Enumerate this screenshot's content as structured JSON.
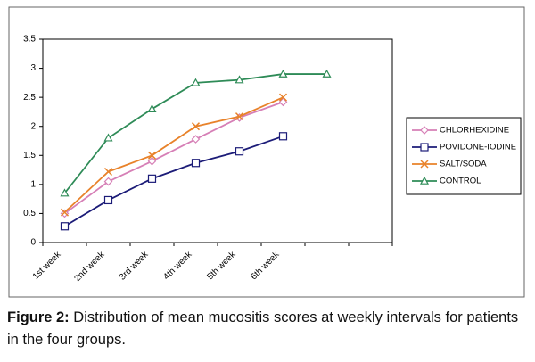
{
  "chart_data": {
    "type": "line",
    "categories": [
      "1st week",
      "2nd week",
      "3rd week",
      "4th week",
      "5th week",
      "6th week",
      null,
      null
    ],
    "series": [
      {
        "name": "CHLORHEXIDINE",
        "color": "#d67fb6",
        "marker": "diamond",
        "values": [
          0.5,
          1.05,
          1.4,
          1.78,
          2.15,
          2.42,
          null,
          null
        ]
      },
      {
        "name": "POVIDONE-IODINE",
        "color": "#1c1c78",
        "marker": "square",
        "values": [
          0.28,
          0.73,
          1.1,
          1.37,
          1.57,
          1.83,
          null,
          null
        ]
      },
      {
        "name": "SALT/SODA",
        "color": "#e8822a",
        "marker": "cross",
        "values": [
          0.52,
          1.22,
          1.5,
          2.0,
          2.17,
          2.5,
          null,
          null
        ]
      },
      {
        "name": "CONTROL",
        "color": "#2e8b57",
        "marker": "triangle",
        "values": [
          0.85,
          1.8,
          2.3,
          2.75,
          2.8,
          2.9,
          2.9,
          null
        ]
      }
    ],
    "ylim": [
      0,
      3.5
    ],
    "yticks": [
      0,
      0.5,
      1,
      1.5,
      2,
      2.5,
      3,
      3.5
    ],
    "grid": false,
    "legend": "right"
  },
  "caption": {
    "label": "Figure 2:",
    "text": "Distribution of mean mucositis scores at weekly intervals for patients in the four groups."
  }
}
